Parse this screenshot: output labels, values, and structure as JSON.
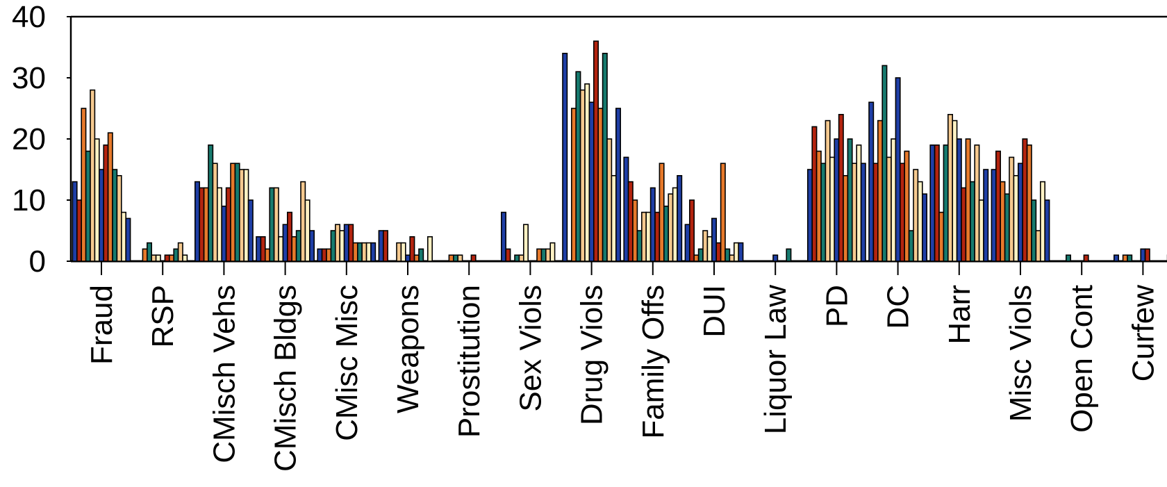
{
  "chart_data": {
    "type": "bar",
    "title": "",
    "xlabel": "",
    "ylabel": "",
    "ylim": [
      0,
      40
    ],
    "yticks": [
      "0",
      "10",
      "20",
      "30",
      "40"
    ],
    "legend": "none",
    "grid": false,
    "colors": [
      "#1f3fa6",
      "#b3240f",
      "#e6792b",
      "#177a6e",
      "#f5c98f",
      "#fff2c4"
    ],
    "categories": [
      "Fraud",
      "RSP",
      "CMisch Vehs",
      "CMisch Bldgs",
      "CMisc Misc",
      "Weapons",
      "Prostitution",
      "Sex Viols",
      "Drug Viols",
      "Family Offs",
      "DUI",
      "Liquor Law",
      "PD",
      "DC",
      "Harr",
      "Misc Viols",
      "Open Cont",
      "Curfew"
    ],
    "values": [
      [
        13,
        10,
        25,
        18,
        28,
        20,
        15,
        19,
        21,
        15,
        14,
        8,
        7
      ],
      [
        0,
        0,
        2,
        3,
        1,
        1,
        0,
        1,
        1,
        2,
        3,
        1,
        0
      ],
      [
        13,
        12,
        12,
        19,
        16,
        12,
        9,
        12,
        16,
        16,
        15,
        15,
        10
      ],
      [
        4,
        4,
        2,
        12,
        12,
        4,
        6,
        8,
        4,
        5,
        13,
        10,
        5
      ],
      [
        2,
        2,
        2,
        5,
        6,
        5,
        6,
        6,
        3,
        3,
        3,
        3,
        3
      ],
      [
        5,
        5,
        0,
        0,
        3,
        3,
        1,
        4,
        1,
        2,
        0,
        4,
        0
      ],
      [
        0,
        0,
        1,
        1,
        1,
        0,
        0,
        1,
        0,
        0,
        0,
        0,
        0
      ],
      [
        8,
        2,
        0,
        1,
        1,
        6,
        0,
        0,
        2,
        2,
        2,
        3,
        0
      ],
      [
        34,
        0,
        25,
        31,
        28,
        29,
        26,
        36,
        25,
        34,
        20,
        14,
        25
      ],
      [
        17,
        13,
        10,
        5,
        8,
        8,
        12,
        8,
        16,
        9,
        11,
        12,
        14
      ],
      [
        6,
        10,
        1,
        2,
        5,
        4,
        7,
        3,
        16,
        2,
        1,
        3,
        3
      ],
      [
        0,
        0,
        0,
        0,
        0,
        0,
        1,
        0,
        0,
        2,
        0,
        0,
        0
      ],
      [
        15,
        22,
        18,
        16,
        23,
        17,
        20,
        24,
        14,
        20,
        16,
        19,
        16
      ],
      [
        26,
        16,
        23,
        32,
        17,
        20,
        30,
        16,
        18,
        5,
        15,
        13,
        11
      ],
      [
        19,
        19,
        8,
        19,
        24,
        23,
        20,
        12,
        20,
        13,
        19,
        10,
        15
      ],
      [
        15,
        18,
        13,
        11,
        17,
        14,
        16,
        20,
        19,
        10,
        5,
        13,
        10
      ],
      [
        0,
        0,
        0,
        1,
        0,
        0,
        0,
        1,
        0,
        0,
        0,
        0,
        0
      ],
      [
        1,
        0,
        1,
        1,
        0,
        0,
        2,
        2,
        0,
        0,
        0,
        0,
        1
      ]
    ]
  }
}
